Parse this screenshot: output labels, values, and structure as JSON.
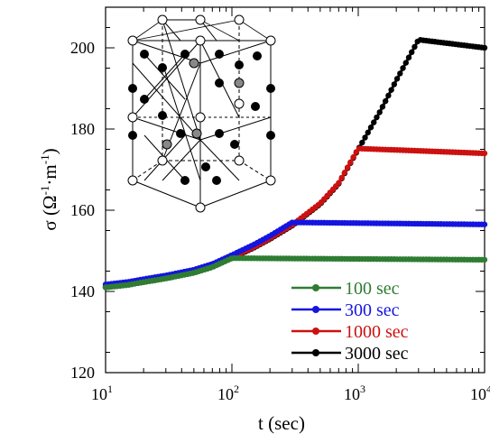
{
  "chart_data": {
    "type": "line",
    "xlabel": "t (sec)",
    "ylabel_main": "σ (Ω",
    "ylabel_sup1": "-1",
    "ylabel_mid": "·m",
    "ylabel_sup2": "-1",
    "ylabel_end": ")",
    "x_scale": "log",
    "xlim": [
      10,
      10000
    ],
    "ylim": [
      120,
      210
    ],
    "x_ticks": [
      {
        "value": 10,
        "base": "10",
        "exp": "1"
      },
      {
        "value": 100,
        "base": "10",
        "exp": "2"
      },
      {
        "value": 1000,
        "base": "10",
        "exp": "3"
      },
      {
        "value": 10000,
        "base": "10",
        "exp": "4"
      }
    ],
    "y_ticks": [
      {
        "value": 120,
        "label": "120"
      },
      {
        "value": 140,
        "label": "140"
      },
      {
        "value": 160,
        "label": "160"
      },
      {
        "value": 180,
        "label": "180"
      },
      {
        "value": 200,
        "label": "200"
      }
    ],
    "legend_position": "bottom-right",
    "grid": false,
    "inset": "crystal-structure-diagram",
    "series": [
      {
        "name": "100 sec",
        "color": "#2e7d32",
        "hold_time": 100,
        "peak": 148.2,
        "end": 147.8
      },
      {
        "name": "300 sec",
        "color": "#1515e0",
        "hold_time": 300,
        "peak": 157.0,
        "end": 156.5
      },
      {
        "name": "1000 sec",
        "color": "#cc1111",
        "hold_time": 1000,
        "peak": 175.2,
        "end": 174.0
      },
      {
        "name": "3000 sec",
        "color": "#000000",
        "hold_time": 3000,
        "peak": 202.0,
        "end": 200.0
      }
    ],
    "common_rise": {
      "t": [
        10,
        15,
        20,
        30,
        50,
        70,
        100,
        150,
        200,
        300,
        500,
        700,
        1000,
        1500,
        2000,
        3000
      ],
      "sigma": [
        141.0,
        141.6,
        142.3,
        143.2,
        144.6,
        146.0,
        148.2,
        150.8,
        152.9,
        156.2,
        161.5,
        166.5,
        175.0,
        184.5,
        192.0,
        202.0
      ]
    }
  }
}
